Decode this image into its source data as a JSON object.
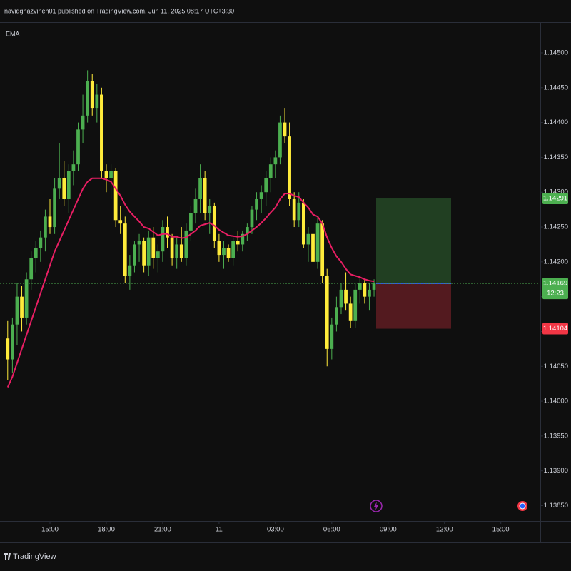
{
  "chart_data": {
    "type": "candlestick",
    "title": "navidghazvineh01 published on TradingView.com, Jun 11, 2025 08:17 UTC+3:30",
    "source": "TradingView",
    "up_color": "#4caf50",
    "down_color": "#ffeb3b",
    "ylim": [
      1.13828,
      1.14543
    ],
    "yticks": [
      {
        "value": 1.145,
        "label": "1.14500"
      },
      {
        "value": 1.1445,
        "label": "1.14450"
      },
      {
        "value": 1.144,
        "label": "1.14400"
      },
      {
        "value": 1.1435,
        "label": "1.14350"
      },
      {
        "value": 1.143,
        "label": "1.14300"
      },
      {
        "value": 1.1425,
        "label": "1.14250"
      },
      {
        "value": 1.142,
        "label": "1.14200"
      },
      {
        "value": 1.1415,
        "label": "1.14150"
      },
      {
        "value": 1.141,
        "label": "1.14100"
      },
      {
        "value": 1.1405,
        "label": "1.14050"
      },
      {
        "value": 1.14,
        "label": "1.14000"
      },
      {
        "value": 1.1395,
        "label": "1.13950"
      },
      {
        "value": 1.139,
        "label": "1.13900"
      },
      {
        "value": 1.1385,
        "label": "1.13850"
      }
    ],
    "xlim": [
      -1.64,
      113.1
    ],
    "xticks": [
      {
        "value": 9,
        "label": "15:00"
      },
      {
        "value": 21,
        "label": "18:00"
      },
      {
        "value": 33,
        "label": "21:00"
      },
      {
        "value": 45,
        "label": "11"
      },
      {
        "value": 57,
        "label": "03:00"
      },
      {
        "value": 69,
        "label": "06:00"
      },
      {
        "value": 81,
        "label": "09:00"
      },
      {
        "value": 93,
        "label": "12:00"
      },
      {
        "value": 105,
        "label": "15:00"
      }
    ],
    "open": [
      1.1409,
      1.1406,
      1.1411,
      1.1415,
      1.1412,
      1.14175,
      1.14205,
      1.1422,
      1.14235,
      1.14265,
      1.1425,
      1.14305,
      1.1432,
      1.1429,
      1.1433,
      1.1434,
      1.1439,
      1.1441,
      1.1446,
      1.1442,
      1.1444,
      1.1433,
      1.1432,
      1.1433,
      1.1426,
      1.14255,
      1.1418,
      1.14195,
      1.14225,
      1.1423,
      1.14195,
      1.14235,
      1.14205,
      1.14215,
      1.1425,
      1.14235,
      1.14205,
      1.14225,
      1.14205,
      1.14245,
      1.1427,
      1.1429,
      1.1432,
      1.1427,
      1.1428,
      1.1423,
      1.1421,
      1.1422,
      1.14205,
      1.1423,
      1.14225,
      1.1424,
      1.1425,
      1.14275,
      1.1429,
      1.143,
      1.1432,
      1.1434,
      1.1435,
      1.144,
      1.1438,
      1.1429,
      1.1426,
      1.14285,
      1.14225,
      1.1424,
      1.142,
      1.14255,
      1.1418,
      1.14075,
      1.1411,
      1.14135,
      1.1416,
      1.1414,
      1.14115,
      1.1416,
      1.1417,
      1.1415,
      1.1416
    ],
    "high": [
      1.14115,
      1.1412,
      1.1417,
      1.14165,
      1.14185,
      1.14215,
      1.1423,
      1.14245,
      1.14275,
      1.1429,
      1.1432,
      1.1437,
      1.14345,
      1.1434,
      1.1436,
      1.144,
      1.1444,
      1.14475,
      1.1447,
      1.14455,
      1.1445,
      1.1434,
      1.1434,
      1.14335,
      1.1428,
      1.14265,
      1.1421,
      1.1423,
      1.1424,
      1.14235,
      1.14245,
      1.1425,
      1.14225,
      1.1426,
      1.14265,
      1.1424,
      1.14235,
      1.1425,
      1.14255,
      1.1428,
      1.14305,
      1.1434,
      1.1433,
      1.1429,
      1.14285,
      1.1424,
      1.1423,
      1.14225,
      1.14235,
      1.14245,
      1.14245,
      1.14255,
      1.1428,
      1.143,
      1.1431,
      1.1433,
      1.1435,
      1.1436,
      1.1441,
      1.1442,
      1.144,
      1.143,
      1.143,
      1.1429,
      1.1425,
      1.1425,
      1.14265,
      1.1426,
      1.1419,
      1.1412,
      1.1415,
      1.1417,
      1.14185,
      1.1415,
      1.1417,
      1.1418,
      1.14175,
      1.1417,
      1.14175
    ],
    "low": [
      1.1403,
      1.1404,
      1.1408,
      1.141,
      1.1411,
      1.1416,
      1.14185,
      1.142,
      1.14215,
      1.1424,
      1.1424,
      1.1429,
      1.1428,
      1.1427,
      1.1431,
      1.1433,
      1.1437,
      1.144,
      1.1441,
      1.144,
      1.1432,
      1.143,
      1.1429,
      1.1425,
      1.1424,
      1.1417,
      1.1416,
      1.14185,
      1.142,
      1.14185,
      1.1418,
      1.1419,
      1.14185,
      1.142,
      1.1422,
      1.14195,
      1.1419,
      1.142,
      1.14195,
      1.1423,
      1.14255,
      1.1427,
      1.1426,
      1.1424,
      1.1422,
      1.142,
      1.1419,
      1.142,
      1.14195,
      1.14215,
      1.14215,
      1.1423,
      1.1424,
      1.1426,
      1.1427,
      1.1428,
      1.143,
      1.1432,
      1.1434,
      1.1437,
      1.1428,
      1.1425,
      1.1425,
      1.1422,
      1.142,
      1.1419,
      1.1419,
      1.1417,
      1.1405,
      1.1406,
      1.141,
      1.14125,
      1.1413,
      1.14105,
      1.14105,
      1.1414,
      1.1414,
      1.1413,
      1.1415
    ],
    "close": [
      1.1406,
      1.1411,
      1.1415,
      1.1412,
      1.14175,
      1.14205,
      1.1422,
      1.14235,
      1.14265,
      1.1425,
      1.14305,
      1.1432,
      1.1429,
      1.1433,
      1.1434,
      1.1439,
      1.1441,
      1.1446,
      1.1442,
      1.1444,
      1.1433,
      1.1432,
      1.1433,
      1.1426,
      1.14255,
      1.1418,
      1.14195,
      1.14225,
      1.1423,
      1.14195,
      1.14235,
      1.14205,
      1.14215,
      1.1425,
      1.14235,
      1.14205,
      1.14225,
      1.14205,
      1.14245,
      1.1427,
      1.1429,
      1.1432,
      1.1427,
      1.1428,
      1.1423,
      1.1421,
      1.1422,
      1.14205,
      1.1423,
      1.14225,
      1.1424,
      1.1425,
      1.14275,
      1.1429,
      1.143,
      1.1432,
      1.1434,
      1.1435,
      1.144,
      1.1438,
      1.1429,
      1.1426,
      1.14285,
      1.14225,
      1.1424,
      1.142,
      1.14255,
      1.1418,
      1.14075,
      1.1411,
      1.14135,
      1.1416,
      1.1414,
      1.14115,
      1.1416,
      1.1417,
      1.1415,
      1.1416,
      1.14169
    ],
    "ema": {
      "name": "EMA",
      "color": "#e91e63",
      "values": [
        1.1402,
        1.14035,
        1.14055,
        1.14075,
        1.14095,
        1.14115,
        1.14135,
        1.14155,
        1.14175,
        1.14195,
        1.14215,
        1.1423,
        1.14245,
        1.1426,
        1.14275,
        1.1429,
        1.14305,
        1.14315,
        1.1432,
        1.1432,
        1.1432,
        1.14318,
        1.14315,
        1.14305,
        1.14295,
        1.14282,
        1.14272,
        1.14265,
        1.14258,
        1.1425,
        1.14248,
        1.14243,
        1.14238,
        1.1424,
        1.1424,
        1.14236,
        1.14236,
        1.14234,
        1.14235,
        1.1424,
        1.14245,
        1.14252,
        1.14254,
        1.14256,
        1.14252,
        1.14246,
        1.14242,
        1.14238,
        1.14237,
        1.14236,
        1.14237,
        1.1424,
        1.14245,
        1.1425,
        1.14256,
        1.14263,
        1.14271,
        1.14278,
        1.1429,
        1.14298,
        1.14298,
        1.14295,
        1.14293,
        1.14285,
        1.14278,
        1.14268,
        1.14265,
        1.14255,
        1.14235,
        1.1422,
        1.14208,
        1.142,
        1.1419,
        1.14182,
        1.1418,
        1.14178,
        1.14175,
        1.14173,
        1.14172
      ]
    },
    "position": {
      "target": 1.14291,
      "entry": 1.14169,
      "stop": 1.14104,
      "countdown": "12:23",
      "profit_color": "#4caf50",
      "loss_color": "#f23645"
    }
  }
}
